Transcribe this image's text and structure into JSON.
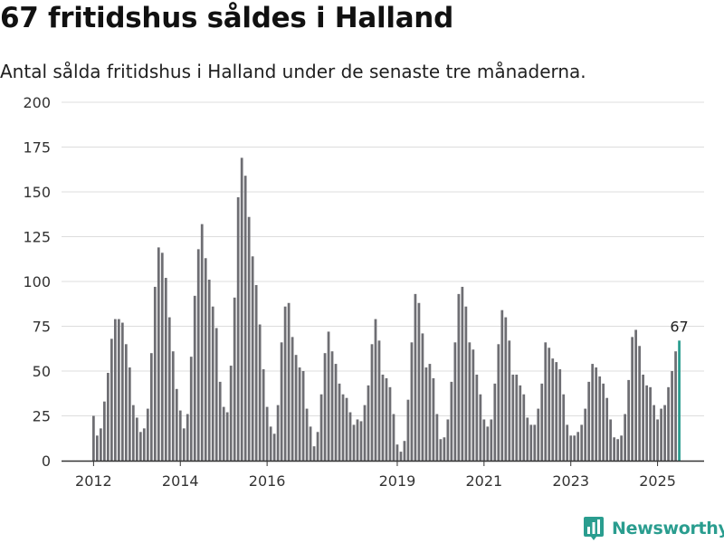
{
  "title": "67 fritidshus såldes i Halland",
  "subtitle": "Antal sålda fritidshus i Halland under de senaste tre månaderna.",
  "brand": {
    "name": "Newsworthy",
    "icon": "newsworthy-logo-icon"
  },
  "colors": {
    "bar": "#6e6e73",
    "highlight": "#2a9d8f",
    "grid": "#dddddd",
    "axis": "#333333",
    "text": "#333333"
  },
  "chart_data": {
    "type": "bar",
    "grid": true,
    "ylim": [
      0,
      200
    ],
    "yticks": [
      "0",
      "25",
      "50",
      "75",
      "100",
      "125",
      "150",
      "175",
      "200"
    ],
    "xticks": [
      "2012",
      "2014",
      "2016",
      "2019",
      "2021",
      "2023",
      "2025"
    ],
    "annotation": "67",
    "values": [
      25,
      14,
      18,
      33,
      49,
      68,
      79,
      79,
      77,
      65,
      52,
      31,
      24,
      16,
      18,
      29,
      60,
      97,
      119,
      116,
      102,
      80,
      61,
      40,
      28,
      18,
      26,
      58,
      92,
      118,
      132,
      113,
      101,
      86,
      74,
      44,
      30,
      27,
      53,
      91,
      147,
      169,
      159,
      136,
      114,
      98,
      76,
      51,
      30,
      19,
      15,
      31,
      66,
      86,
      88,
      69,
      59,
      52,
      50,
      29,
      19,
      8,
      16,
      37,
      60,
      72,
      61,
      54,
      43,
      37,
      35,
      27,
      20,
      23,
      22,
      31,
      42,
      65,
      79,
      67,
      48,
      46,
      41,
      26,
      9,
      5,
      11,
      34,
      66,
      93,
      88,
      71,
      52,
      54,
      46,
      26,
      12,
      13,
      23,
      44,
      66,
      93,
      97,
      86,
      66,
      62,
      48,
      37,
      23,
      19,
      23,
      43,
      65,
      84,
      80,
      67,
      48,
      48,
      42,
      37,
      24,
      20,
      20,
      29,
      43,
      66,
      63,
      57,
      55,
      51,
      37,
      20,
      14,
      14,
      16,
      20,
      29,
      44,
      54,
      52,
      47,
      43,
      35,
      23,
      13,
      12,
      14,
      26,
      45,
      69,
      73,
      64,
      48,
      42,
      41,
      31,
      23,
      29,
      31,
      41,
      50,
      61,
      67
    ]
  }
}
